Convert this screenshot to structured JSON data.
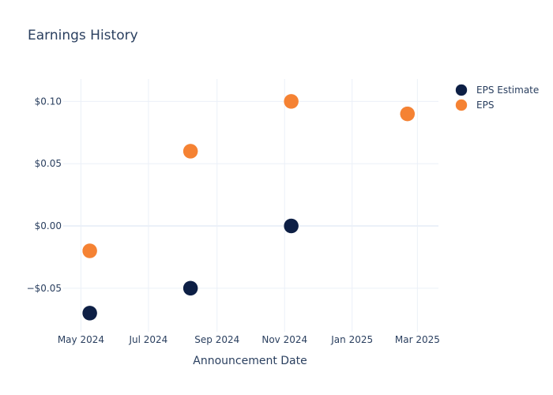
{
  "chart_data": {
    "type": "scatter",
    "title": "Earnings History",
    "xlabel": "Announcement Date",
    "ylabel": "",
    "x_ticks": [
      {
        "label": "May 2024",
        "date": "2024-05-01"
      },
      {
        "label": "Jul 2024",
        "date": "2024-07-01"
      },
      {
        "label": "Sep 2024",
        "date": "2024-09-01"
      },
      {
        "label": "Nov 2024",
        "date": "2024-11-01"
      },
      {
        "label": "Jan 2025",
        "date": "2025-01-01"
      },
      {
        "label": "Mar 2025",
        "date": "2025-03-01"
      }
    ],
    "y_ticks": [
      {
        "label": "−$0.05",
        "value": -0.05
      },
      {
        "label": "$0.00",
        "value": 0.0
      },
      {
        "label": "$0.05",
        "value": 0.05
      },
      {
        "label": "$0.10",
        "value": 0.1
      }
    ],
    "xlim": [
      "2024-04-15",
      "2025-03-20"
    ],
    "ylim": [
      -0.085,
      0.118
    ],
    "grid": true,
    "legend_position": "top-right",
    "series": [
      {
        "name": "EPS Estimate",
        "color": "#0d1f45",
        "points": [
          {
            "date": "2024-05-09",
            "value": -0.07
          },
          {
            "date": "2024-08-08",
            "value": -0.05
          },
          {
            "date": "2024-11-07",
            "value": 0.0
          },
          {
            "date": "2025-02-20",
            "value": 0.09
          }
        ]
      },
      {
        "name": "EPS",
        "color": "#f58233",
        "points": [
          {
            "date": "2024-05-09",
            "value": -0.02
          },
          {
            "date": "2024-08-08",
            "value": 0.06
          },
          {
            "date": "2024-11-07",
            "value": 0.1
          },
          {
            "date": "2025-02-20",
            "value": 0.09
          }
        ]
      }
    ]
  }
}
